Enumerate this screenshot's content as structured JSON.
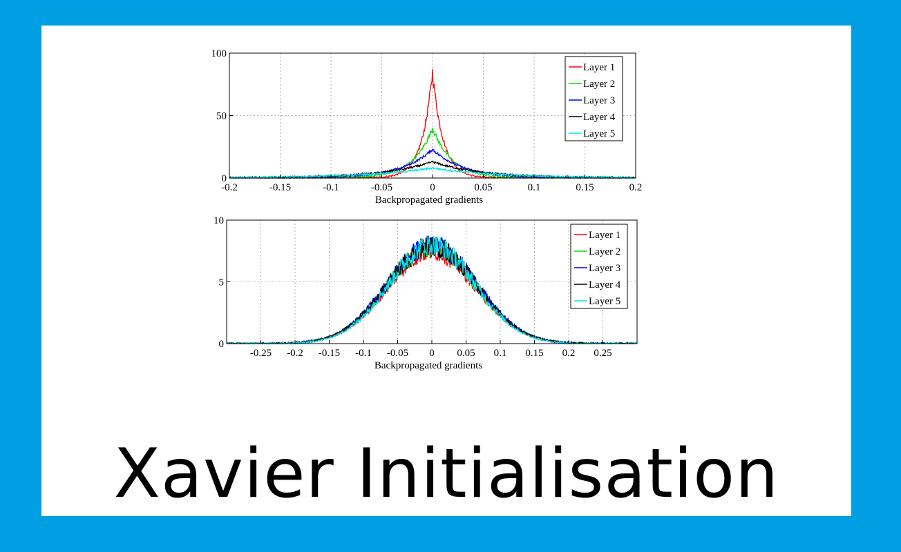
{
  "caption": "Xavier Initialisation",
  "chart_data": [
    {
      "type": "line",
      "xlabel": "Backpropagated gradients",
      "ylabel": "",
      "xlim": [
        -0.2,
        0.2
      ],
      "ylim": [
        0,
        100
      ],
      "xticks": [
        -0.2,
        -0.15,
        -0.1,
        -0.05,
        0,
        0.05,
        0.1,
        0.15,
        0.2
      ],
      "xtick_labels": [
        "-0.2",
        "-0.15",
        "-0.1",
        "-0.05",
        "0",
        "0.05",
        "0.1",
        "0.15",
        "0.2"
      ],
      "yticks": [
        0,
        50,
        100
      ],
      "ytick_labels": [
        "0",
        "50",
        "100"
      ],
      "grid": true,
      "legend_position": "top-right",
      "series": [
        {
          "name": "Layer 1",
          "color": "#ff0000",
          "peak": 85,
          "width": 0.012
        },
        {
          "name": "Layer 2",
          "color": "#00dd00",
          "peak": 40,
          "width": 0.022
        },
        {
          "name": "Layer 3",
          "color": "#0000ff",
          "peak": 23,
          "width": 0.035
        },
        {
          "name": "Layer 4",
          "color": "#000000",
          "peak": 13,
          "width": 0.055
        },
        {
          "name": "Layer 5",
          "color": "#00e5e5",
          "peak": 8,
          "width": 0.075
        }
      ]
    },
    {
      "type": "line",
      "xlabel": "Backpropagated gradients",
      "ylabel": "",
      "xlim": [
        -0.3,
        0.3
      ],
      "ylim": [
        0,
        10
      ],
      "xticks": [
        -0.25,
        -0.2,
        -0.15,
        -0.1,
        -0.05,
        0,
        0.05,
        0.1,
        0.15,
        0.2,
        0.25
      ],
      "xtick_labels": [
        "-0.25",
        "-0.2",
        "-0.15",
        "-0.1",
        "-0.05",
        "0",
        "0.05",
        "0.1",
        "0.15",
        "0.2",
        "0.25"
      ],
      "yticks": [
        0,
        5,
        10
      ],
      "ytick_labels": [
        "0",
        "5",
        "10"
      ],
      "grid": true,
      "legend_position": "top-right",
      "series": [
        {
          "name": "Layer 1",
          "color": "#ff0000",
          "peak": 7.5,
          "width": 0.065
        },
        {
          "name": "Layer 2",
          "color": "#00dd00",
          "peak": 7.8,
          "width": 0.065
        },
        {
          "name": "Layer 3",
          "color": "#0000ff",
          "peak": 8.0,
          "width": 0.065
        },
        {
          "name": "Layer 4",
          "color": "#000000",
          "peak": 7.9,
          "width": 0.065
        },
        {
          "name": "Layer 5",
          "color": "#00e5e5",
          "peak": 8.0,
          "width": 0.063
        }
      ]
    }
  ]
}
